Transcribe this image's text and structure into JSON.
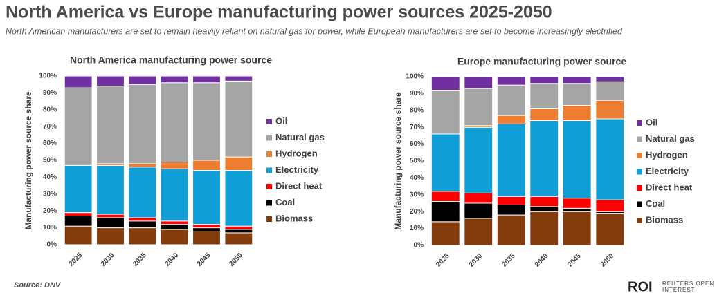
{
  "title": "North America vs Europe manufacturing power sources 2025-2050",
  "subtitle": "North American manufacturers are set to remain heavily reliant on natural gas for power, while European manufacturers are set to become increasingly electrified",
  "source": "Source:  DNV",
  "logo": {
    "mark": "ROI",
    "line1": "REUTERS OPEN",
    "line2": "INTEREST"
  },
  "chart_data": [
    {
      "type": "stacked_bar",
      "title": "North America manufacturing power source",
      "y_label": "Manufacturing power source share",
      "categories": [
        "2025",
        "2030",
        "2035",
        "2040",
        "2045",
        "2050"
      ],
      "ylim": [
        0,
        100
      ],
      "yticks": [
        {
          "value": 0,
          "label": "0%"
        },
        {
          "value": 10,
          "label": "10%"
        },
        {
          "value": 20,
          "label": "20%"
        },
        {
          "value": 30,
          "label": "30%"
        },
        {
          "value": 40,
          "label": "40%"
        },
        {
          "value": 50,
          "label": "50%"
        },
        {
          "value": 60,
          "label": "60%"
        },
        {
          "value": 70,
          "label": "70%"
        },
        {
          "value": 80,
          "label": "80%"
        },
        {
          "value": 90,
          "label": "90%"
        },
        {
          "value": 100,
          "label": "100%"
        }
      ],
      "series": [
        {
          "name": "Biomass",
          "color": "#843c0c",
          "values": [
            11,
            10,
            10,
            9,
            8,
            7
          ]
        },
        {
          "name": "Coal",
          "color": "#000000",
          "values": [
            6,
            6,
            4,
            3,
            2,
            2
          ]
        },
        {
          "name": "Direct heat",
          "color": "#ff0000",
          "values": [
            2,
            2,
            2,
            2,
            2,
            2
          ]
        },
        {
          "name": "Electricity",
          "color": "#0f9ed5",
          "values": [
            28,
            29,
            30,
            31,
            32,
            33
          ]
        },
        {
          "name": "Hydrogen",
          "color": "#ed7d31",
          "values": [
            0,
            1,
            2,
            4,
            6,
            8
          ]
        },
        {
          "name": "Natural gas",
          "color": "#a5a5a5",
          "values": [
            46,
            46,
            47,
            47,
            46,
            45
          ]
        },
        {
          "name": "Oil",
          "color": "#7030a0",
          "values": [
            7,
            6,
            5,
            4,
            4,
            3
          ]
        }
      ]
    },
    {
      "type": "stacked_bar",
      "title": "Europe manufacturing power source",
      "y_label": "Manufacturing power source share",
      "categories": [
        "2025",
        "2030",
        "2035",
        "2040",
        "2045",
        "2050"
      ],
      "ylim": [
        0,
        100
      ],
      "yticks": [
        {
          "value": 0,
          "label": "0%"
        },
        {
          "value": 10,
          "label": "10%"
        },
        {
          "value": 20,
          "label": "20%"
        },
        {
          "value": 30,
          "label": "30%"
        },
        {
          "value": 40,
          "label": "40%"
        },
        {
          "value": 50,
          "label": "50%"
        },
        {
          "value": 60,
          "label": "60%"
        },
        {
          "value": 70,
          "label": "70%"
        },
        {
          "value": 80,
          "label": "80%"
        },
        {
          "value": 90,
          "label": "90%"
        },
        {
          "value": 100,
          "label": "100%"
        }
      ],
      "series": [
        {
          "name": "Biomass",
          "color": "#843c0c",
          "values": [
            14,
            16,
            18,
            20,
            20,
            19
          ]
        },
        {
          "name": "Coal",
          "color": "#000000",
          "values": [
            12,
            9,
            6,
            3,
            2,
            1
          ]
        },
        {
          "name": "Direct heat",
          "color": "#ff0000",
          "values": [
            6,
            6,
            5,
            6,
            6,
            7
          ]
        },
        {
          "name": "Electricity",
          "color": "#0f9ed5",
          "values": [
            34,
            39,
            43,
            45,
            46,
            48
          ]
        },
        {
          "name": "Hydrogen",
          "color": "#ed7d31",
          "values": [
            0,
            1,
            5,
            7,
            9,
            11
          ]
        },
        {
          "name": "Natural gas",
          "color": "#a5a5a5",
          "values": [
            26,
            22,
            18,
            15,
            13,
            11
          ]
        },
        {
          "name": "Oil",
          "color": "#7030a0",
          "values": [
            8,
            7,
            5,
            4,
            4,
            3
          ]
        }
      ]
    }
  ]
}
